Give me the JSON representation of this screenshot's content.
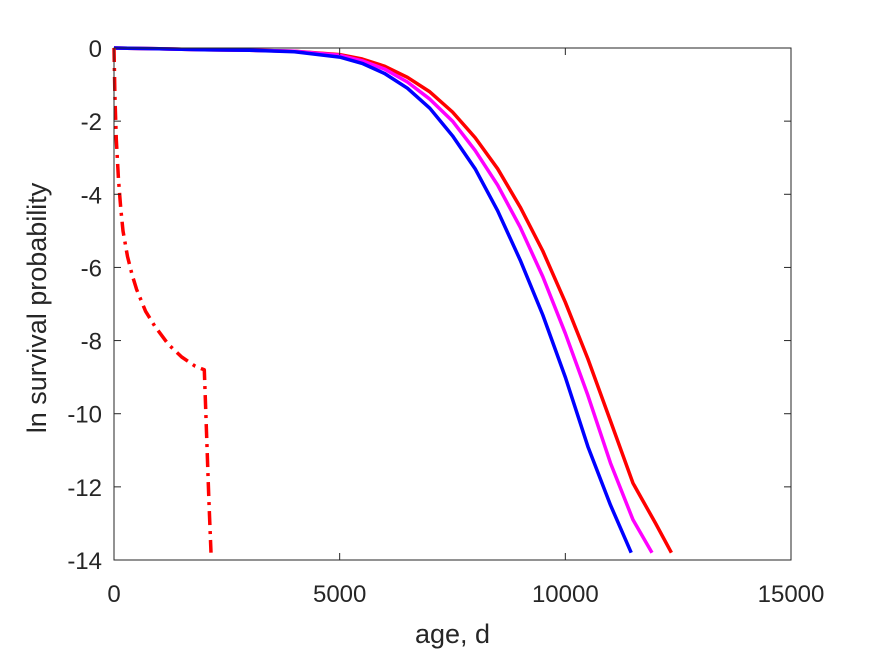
{
  "chart_data": {
    "type": "line",
    "xlabel": "age, d",
    "ylabel": "ln survival probability",
    "xlim": [
      0,
      15000
    ],
    "ylim": [
      -14,
      0
    ],
    "xticks": [
      "0",
      "5000",
      "10000",
      "15000"
    ],
    "yticks": [
      "0",
      "-2",
      "-4",
      "-6",
      "-8",
      "-10",
      "-12",
      "-14"
    ],
    "grid": false,
    "box": true,
    "series": [
      {
        "color": "#ff0000",
        "style": "solid",
        "x": [
          0,
          1000,
          2000,
          3000,
          4000,
          5000,
          5500,
          6000,
          6500,
          7000,
          7500,
          8000,
          8500,
          9000,
          9500,
          10000,
          10500,
          11000,
          11500,
          12000,
          12350
        ],
        "y": [
          0,
          -0.02,
          -0.05,
          -0.06,
          -0.09,
          -0.18,
          -0.3,
          -0.5,
          -0.8,
          -1.2,
          -1.75,
          -2.45,
          -3.3,
          -4.35,
          -5.55,
          -6.95,
          -8.5,
          -10.2,
          -11.9,
          -13.0,
          -13.8
        ]
      },
      {
        "color": "#ff00ff",
        "style": "solid",
        "x": [
          0,
          1000,
          2000,
          3000,
          4000,
          5000,
          5500,
          6000,
          6500,
          7000,
          7500,
          8000,
          8500,
          9000,
          9500,
          10000,
          10500,
          11000,
          11500,
          11920
        ],
        "y": [
          0,
          -0.02,
          -0.05,
          -0.06,
          -0.09,
          -0.2,
          -0.35,
          -0.58,
          -0.93,
          -1.4,
          -2.0,
          -2.8,
          -3.75,
          -4.9,
          -6.25,
          -7.8,
          -9.5,
          -11.35,
          -12.9,
          -13.8
        ]
      },
      {
        "color": "#0000ff",
        "style": "solid",
        "x": [
          0,
          1000,
          2000,
          3000,
          4000,
          5000,
          5500,
          6000,
          6500,
          7000,
          7500,
          8000,
          8500,
          9000,
          9500,
          10000,
          10500,
          11000,
          11460
        ],
        "y": [
          0,
          -0.02,
          -0.05,
          -0.06,
          -0.1,
          -0.25,
          -0.42,
          -0.7,
          -1.1,
          -1.65,
          -2.4,
          -3.3,
          -4.45,
          -5.8,
          -7.3,
          -9.0,
          -10.9,
          -12.5,
          -13.8
        ]
      },
      {
        "color": "#ff0000",
        "style": "dashdot",
        "x": [
          0,
          20,
          50,
          100,
          150,
          200,
          300,
          400,
          500,
          700,
          900,
          1200,
          1500,
          1800,
          2000,
          2050,
          2100,
          2150
        ],
        "y": [
          0,
          -1.3,
          -2.5,
          -3.6,
          -4.4,
          -5.0,
          -5.7,
          -6.2,
          -6.6,
          -7.2,
          -7.6,
          -8.1,
          -8.45,
          -8.7,
          -8.8,
          -10.5,
          -12.3,
          -13.8
        ]
      }
    ]
  }
}
